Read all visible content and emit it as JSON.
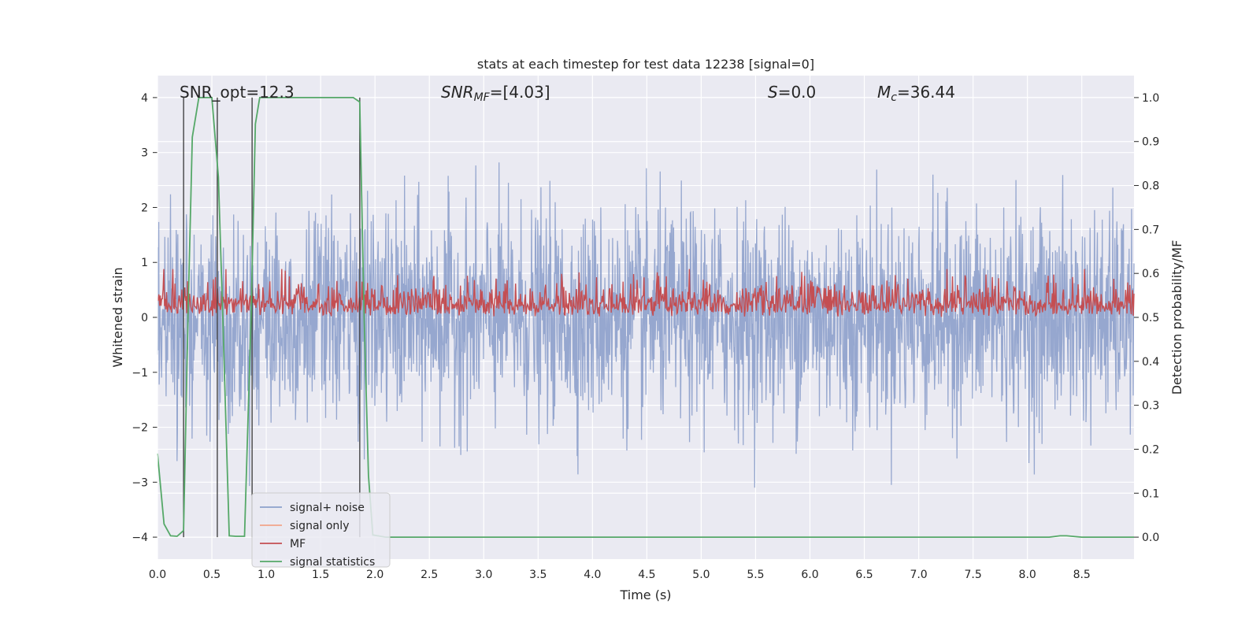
{
  "chart_data": {
    "type": "line",
    "title": "stats at each timestep for test data 12238 [signal=0]",
    "xlabel": "Time (s)",
    "ylabel_left": "Whitened strain",
    "ylabel_right": "Detection probability/MF",
    "xlim": [
      0.0,
      8.98
    ],
    "ylim_left": [
      -4.4,
      4.4
    ],
    "ylim_right": [
      -0.05,
      1.05
    ],
    "x_ticks": [
      "0.0",
      "0.5",
      "1.0",
      "1.5",
      "2.0",
      "2.5",
      "3.0",
      "3.5",
      "4.0",
      "4.5",
      "5.0",
      "5.5",
      "6.0",
      "6.5",
      "7.0",
      "7.5",
      "8.0",
      "8.5"
    ],
    "y_ticks_left": [
      "4",
      "3",
      "2",
      "1",
      "0",
      "−1",
      "−2",
      "−3",
      "−4"
    ],
    "y_ticks_right": [
      "1.0",
      "0.9",
      "0.8",
      "0.7",
      "0.6",
      "0.5",
      "0.4",
      "0.3",
      "0.2",
      "0.1",
      "0.0"
    ],
    "grid": true,
    "legend_position": "bottom-left",
    "annotations": {
      "snr_opt": "SNR_opt=12.3",
      "snr_mf_label": "SNR",
      "snr_mf_sub": "MF",
      "snr_mf_value": "=[4.03]",
      "s_label": "S",
      "s_value": "=0.0",
      "mc_label": "M",
      "mc_sub": "c",
      "mc_value": "=36.44"
    },
    "series": [
      {
        "name": "signal+ noise",
        "color": "#8da0cb",
        "axis": "left",
        "description_values": "noise band roughly -2.5 to 2.5 with peaks near ±3.5",
        "peak_envelope": [
          [
            0.0,
            2.4
          ],
          [
            0.5,
            3.0
          ],
          [
            1.0,
            3.1
          ],
          [
            1.5,
            3.2
          ],
          [
            2.0,
            2.9
          ],
          [
            2.5,
            2.9
          ],
          [
            3.0,
            3.1
          ],
          [
            3.5,
            2.8
          ],
          [
            4.0,
            3.1
          ],
          [
            4.5,
            2.8
          ],
          [
            5.0,
            3.1
          ],
          [
            5.5,
            3.1
          ],
          [
            6.0,
            3.0
          ],
          [
            6.5,
            3.0
          ],
          [
            7.0,
            3.1
          ],
          [
            7.5,
            3.1
          ],
          [
            7.8,
            3.6
          ],
          [
            8.0,
            3.0
          ],
          [
            8.3,
            3.9
          ],
          [
            8.5,
            3.0
          ],
          [
            8.9,
            2.8
          ]
        ]
      },
      {
        "name": "signal only",
        "color": "#f2a48a",
        "axis": "left",
        "values": []
      },
      {
        "name": "MF",
        "color": "#c44e52",
        "axis": "right",
        "band": [
          0.5,
          0.6
        ]
      },
      {
        "name": "signal statistics",
        "color": "#55a868",
        "axis": "right",
        "x": [
          0.0,
          0.06,
          0.12,
          0.18,
          0.24,
          0.28,
          0.32,
          0.38,
          0.5,
          0.56,
          0.6,
          0.66,
          0.72,
          0.8,
          0.86,
          0.9,
          0.94,
          1.0,
          1.4,
          1.8,
          1.86,
          1.9,
          1.94,
          1.98,
          2.1,
          8.2,
          8.3,
          8.36,
          8.5,
          8.98
        ],
        "values": [
          0.19,
          0.03,
          0.003,
          0.002,
          0.015,
          0.5,
          0.91,
          1.0,
          1.0,
          0.82,
          0.5,
          0.003,
          0.002,
          0.002,
          0.5,
          0.94,
          1.0,
          1.0,
          1.0,
          1.0,
          0.99,
          0.5,
          0.14,
          0.005,
          0.0,
          0.0,
          0.003,
          0.003,
          0.0,
          0.0
        ]
      }
    ],
    "vertical_markers_x": [
      0.24,
      0.55,
      0.87,
      1.86
    ]
  }
}
